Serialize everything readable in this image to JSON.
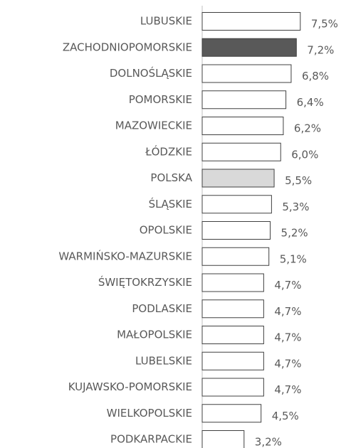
{
  "chart_data": {
    "type": "barh",
    "categories": [
      "LUBUSKIE",
      "ZACHODNIOPOMORSKIE",
      "DOLNOŚLĄSKIE",
      "POMORSKIE",
      "MAZOWIECKIE",
      "ŁÓDZKIE",
      "POLSKA",
      "ŚLĄSKIE",
      "OPOLSKIE",
      "WARMIŃSKO-MAZURSKIE",
      "ŚWIĘTOKRZYSKIE",
      "PODLASKIE",
      "MAŁOPOLSKIE",
      "LUBELSKIE",
      "KUJAWSKO-POMORSKIE",
      "WIELKOPOLSKIE",
      "PODKARPACKIE"
    ],
    "values": [
      7.5,
      7.2,
      6.8,
      6.4,
      6.2,
      6.0,
      5.5,
      5.3,
      5.2,
      5.1,
      4.7,
      4.7,
      4.7,
      4.7,
      4.7,
      4.5,
      3.2
    ],
    "value_labels": [
      "7,5%",
      "7,2%",
      "6,8%",
      "6,4%",
      "6,2%",
      "6,0%",
      "5,5%",
      "5,3%",
      "5,2%",
      "5,1%",
      "4,7%",
      "4,7%",
      "4,7%",
      "4,7%",
      "4,7%",
      "4,5%",
      "3,2%"
    ],
    "colors": [
      "#ffffff",
      "#595959",
      "#ffffff",
      "#ffffff",
      "#ffffff",
      "#ffffff",
      "#d9d9d9",
      "#ffffff",
      "#ffffff",
      "#ffffff",
      "#ffffff",
      "#ffffff",
      "#ffffff",
      "#ffffff",
      "#ffffff",
      "#ffffff",
      "#ffffff"
    ],
    "xlim": [
      0,
      8
    ]
  }
}
